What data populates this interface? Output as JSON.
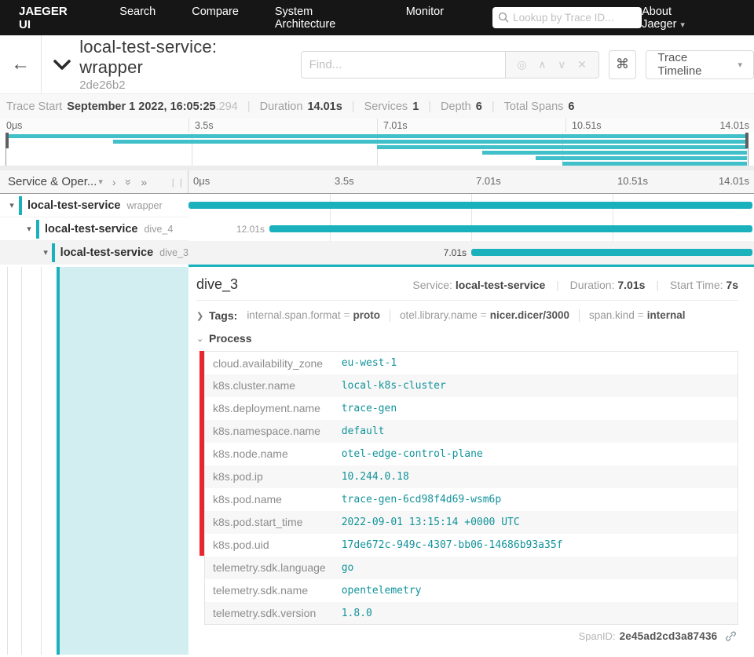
{
  "nav": {
    "brand": "JAEGER UI",
    "links": [
      "Search",
      "Compare",
      "System Architecture",
      "Monitor"
    ],
    "search_placeholder": "Lookup by Trace ID...",
    "about_label": "About Jaeger"
  },
  "header": {
    "title": "local-test-service: wrapper",
    "trace_id_short": "2de26b2",
    "find_placeholder": "Find...",
    "shortcut_glyph": "⌘",
    "view_selector_label": "Trace Timeline"
  },
  "stats": {
    "trace_start_label": "Trace Start",
    "trace_start_value": "September 1 2022, 16:05:25",
    "trace_start_millis": ".294",
    "duration_label": "Duration",
    "duration_value": "14.01s",
    "services_label": "Services",
    "services_value": "1",
    "depth_label": "Depth",
    "depth_value": "6",
    "total_spans_label": "Total Spans",
    "total_spans_value": "6"
  },
  "ticks": [
    "0μs",
    "3.5s",
    "7.01s",
    "10.51s",
    "14.01s"
  ],
  "timeline": {
    "left_column_title": "Service & Oper...",
    "axis_range_seconds": [
      0,
      14.01
    ]
  },
  "minimap": {
    "row_start_pct": [
      0,
      14.3,
      50,
      64.2,
      71.4,
      75
    ]
  },
  "span_rows": [
    {
      "service": "local-test-service",
      "operation": "wrapper",
      "depth": 0,
      "start_pct": 0,
      "duration_label": "",
      "selected": false
    },
    {
      "service": "local-test-service",
      "operation": "dive_4",
      "depth": 1,
      "start_pct": 14.3,
      "duration_label": "12.01s",
      "selected": false
    },
    {
      "service": "local-test-service",
      "operation": "dive_3",
      "depth": 2,
      "start_pct": 50,
      "duration_label": "7.01s",
      "selected": true
    }
  ],
  "detail": {
    "operation": "dive_3",
    "service_label": "Service:",
    "service": "local-test-service",
    "duration_label": "Duration:",
    "duration": "7.01s",
    "start_label": "Start Time:",
    "start": "7s",
    "tags_label": "Tags:",
    "tags": [
      {
        "key": "internal.span.format",
        "value": "proto"
      },
      {
        "key": "otel.library.name",
        "value": "nicer.dicer/3000"
      },
      {
        "key": "span.kind",
        "value": "internal"
      }
    ],
    "process_label": "Process",
    "process": [
      {
        "key": "cloud.availability_zone",
        "value": "eu-west-1"
      },
      {
        "key": "k8s.cluster.name",
        "value": "local-k8s-cluster"
      },
      {
        "key": "k8s.deployment.name",
        "value": "trace-gen"
      },
      {
        "key": "k8s.namespace.name",
        "value": "default"
      },
      {
        "key": "k8s.node.name",
        "value": "otel-edge-control-plane"
      },
      {
        "key": "k8s.pod.ip",
        "value": "10.244.0.18"
      },
      {
        "key": "k8s.pod.name",
        "value": "trace-gen-6cd98f4d69-wsm6p"
      },
      {
        "key": "k8s.pod.start_time",
        "value": "2022-09-01 13:15:14 +0000 UTC"
      },
      {
        "key": "k8s.pod.uid",
        "value": "17de672c-949c-4307-bb06-14686b93a35f"
      },
      {
        "key": "telemetry.sdk.language",
        "value": "go"
      },
      {
        "key": "telemetry.sdk.name",
        "value": "opentelemetry"
      },
      {
        "key": "telemetry.sdk.version",
        "value": "1.8.0"
      }
    ],
    "span_id_label": "SpanID:",
    "span_id": "2e45ad2cd3a87436"
  },
  "colors": {
    "accent_teal": "#1ab1bd",
    "minimap_teal": "#41c0ca",
    "annotation_red": "#e8262d",
    "selected_row_bg": "#f3f3f3",
    "detail_fill_teal": "#d2eef1",
    "nav_bg": "#161616",
    "value_teal": "#12939a"
  }
}
